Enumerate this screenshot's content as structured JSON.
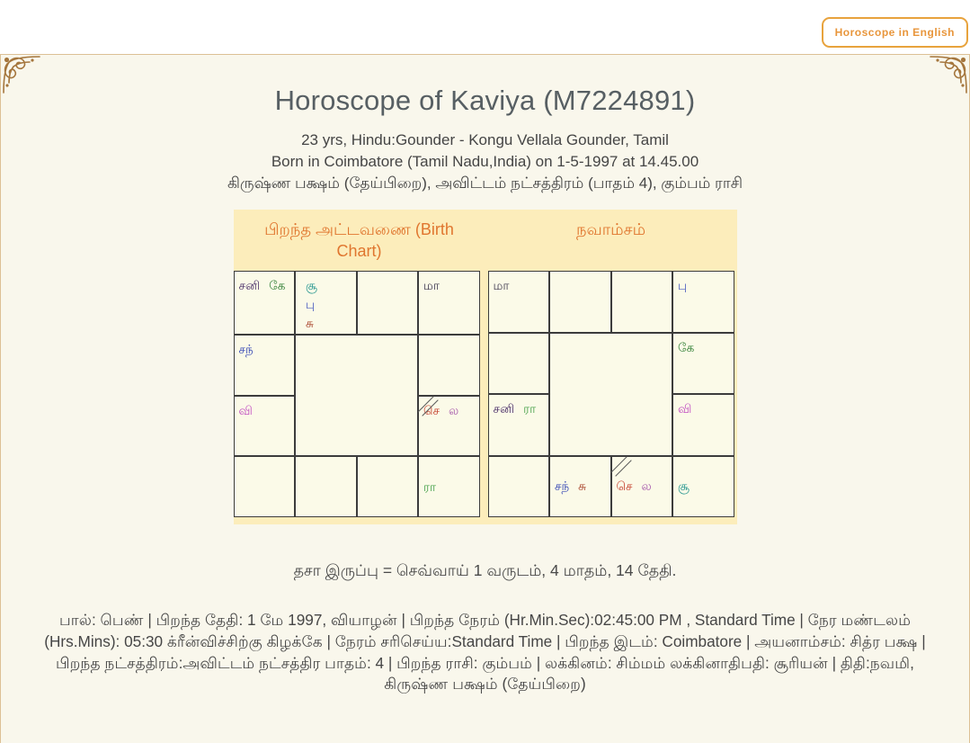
{
  "top_button": {
    "label": "Horoscope in English"
  },
  "header": {
    "title": "Horoscope of  Kaviya (M7224891)",
    "info_lines": [
      "23 yrs, Hindu:Gounder - Kongu Vellala Gounder, Tamil",
      "Born in Coimbatore (Tamil Nadu,India) on 1-5-1997 at 14.45.00",
      "கிருஷ்ண பக்ஷம் (தேய்பிறை), அவிட்டம் நட்சத்திரம் (பாதம் 4), கும்பம் ராசி"
    ]
  },
  "colors": {
    "card_bg": "#f9f7ec",
    "panel_bg": "#fcedbb",
    "cell_bg": "#fbfae8",
    "heading_orange": "#e0762f",
    "button_orange": "#e8a33d",
    "title_gray": "#575f63",
    "grid_line": "#3c3c3c"
  },
  "charts": [
    {
      "title": "பிறந்த அட்டவணை (Birth Chart)",
      "cells": [
        {
          "planets": [
            {
              "name": "saturn",
              "t": "சனி",
              "c": "#4a2e68"
            },
            {
              "name": "ketu",
              "t": "கே",
              "c": "#2e7d32"
            }
          ]
        },
        {
          "stack": true,
          "planets": [
            {
              "name": "sun",
              "t": "சூ",
              "c": "#26968f"
            },
            {
              "name": "mercury",
              "t": "பு",
              "c": "#4a5bbf"
            },
            {
              "name": "venus",
              "t": "சு",
              "c": "#a8432a"
            }
          ]
        },
        {
          "planets": []
        },
        {
          "planets": [
            {
              "name": "mandi",
              "t": "மா",
              "c": "#3f3950"
            }
          ]
        },
        {
          "planets": [
            {
              "name": "moon",
              "t": "சந்",
              "c": "#3446b4"
            }
          ]
        },
        {
          "planets": []
        },
        {
          "planets": [
            {
              "name": "jupiter",
              "t": "வி",
              "c": "#c24fc2"
            }
          ]
        },
        {
          "lagna": true,
          "planets": [
            {
              "name": "mars",
              "t": "செ",
              "c": "#c5402e"
            },
            {
              "name": "lagnam",
              "t": "ல",
              "c": "#a85cad"
            }
          ]
        },
        {
          "planets": []
        },
        {
          "planets": []
        },
        {
          "planets": []
        },
        {
          "planets": [
            {
              "name": "rahu",
              "t": "ரா",
              "c": "#46a049"
            }
          ]
        }
      ]
    },
    {
      "title": "நவாம்சம்",
      "cells": [
        {
          "planets": [
            {
              "name": "mandi",
              "t": "மா",
              "c": "#3f3950"
            }
          ]
        },
        {
          "planets": []
        },
        {
          "planets": []
        },
        {
          "planets": [
            {
              "name": "mercury",
              "t": "பு",
              "c": "#4a5bbf"
            }
          ]
        },
        {
          "planets": []
        },
        {
          "planets": [
            {
              "name": "ketu",
              "t": "கே",
              "c": "#2e7d32"
            }
          ]
        },
        {
          "planets": [
            {
              "name": "saturn",
              "t": "சனி",
              "c": "#4a2e68"
            },
            {
              "name": "rahu",
              "t": "ரா",
              "c": "#46a049"
            }
          ]
        },
        {
          "planets": [
            {
              "name": "jupiter",
              "t": "வி",
              "c": "#c24fc2"
            }
          ]
        },
        {
          "planets": []
        },
        {
          "planets": [
            {
              "name": "moon",
              "t": "சந்",
              "c": "#3446b4"
            },
            {
              "name": "venus",
              "t": "சு",
              "c": "#a8432a"
            }
          ]
        },
        {
          "lagna": true,
          "planets": [
            {
              "name": "mars",
              "t": "செ",
              "c": "#c5402e"
            },
            {
              "name": "lagnam",
              "t": "ல",
              "c": "#a85cad"
            }
          ]
        },
        {
          "planets": [
            {
              "name": "sun",
              "t": "சூ",
              "c": "#26968f"
            }
          ]
        }
      ]
    }
  ],
  "dasa_line": "தசா இருப்பு = செவ்வாய் 1 வருடம், 4 மாதம், 14 தேதி.",
  "details": [
    "பால்: பெண் | பிறந்த தேதி: 1 மே 1997, வியாழன் | பிறந்த நேரம் (Hr.Min.Sec):02:45:00 PM , Standard Time | நேர மண்டலம்",
    "(Hrs.Mins): 05:30 க்ரீன்விச்சிற்கு கிழக்கே | நேரம் சரிசெய்ய:Standard Time | பிறந்த இடம்: Coimbatore | அயனாம்சம்: சித்ர பக்ஷ | பிறந்த நட்சத்திரம்:அவிட்டம் நட்சத்திர பாதம்: 4 | பிறந்த ராசி: கும்பம் | லக்கினம்: சிம்மம் லக்கினாதிபதி: சூரியன் | திதி:நவமி, கிருஷ்ண பக்ஷம் (தேய்பிறை)"
  ]
}
